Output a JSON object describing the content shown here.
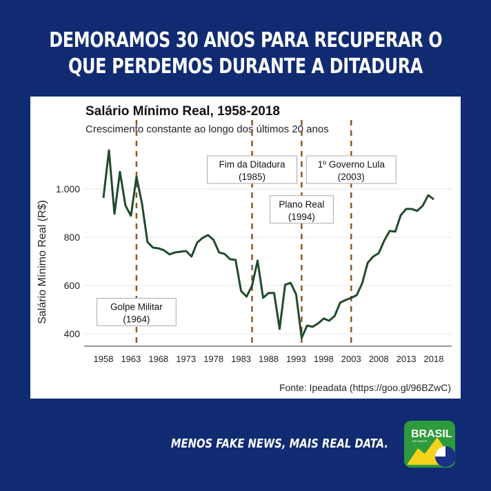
{
  "headline": {
    "line1": "DEMORAMOS 30 ANOS PARA RECUPERAR O",
    "line2": "QUE PERDEMOS DURANTE A DITADURA"
  },
  "footer": {
    "tagline": "MENOS FAKE NEWS, MAIS REAL DATA.",
    "logo_text": "BRASIL",
    "logo_subtext": "EM DADOS"
  },
  "colors": {
    "background": "#112b72",
    "line": "#1f4a2c",
    "event_line": "#8a5a25"
  },
  "chart_data": {
    "type": "line",
    "title": "Salário Mínimo Real, 1958-2018",
    "subtitle": "Crescimento constante ao longo dos últimos 20 anos",
    "ylabel": "Salário Mínimo Real (R$)",
    "xlabel": "",
    "source": "Fonte: Ipeadata (https://goo.gl/96BZwC)",
    "xlim": [
      1956,
      2021
    ],
    "ylim": [
      360,
      1200
    ],
    "xticks": [
      1958,
      1963,
      1968,
      1973,
      1978,
      1983,
      1988,
      1993,
      1998,
      2003,
      2008,
      2013,
      2018
    ],
    "xtick_labels": [
      "1958",
      "1963",
      "1968",
      "1973",
      "1978",
      "1983",
      "1988",
      "1993",
      "1998",
      "2003",
      "2008",
      "2013",
      "2018"
    ],
    "yticks": [
      400,
      600,
      800,
      1000
    ],
    "ytick_labels": [
      "400",
      "600",
      "800",
      "1.000"
    ],
    "grid": true,
    "x": [
      1958,
      1959,
      1960,
      1961,
      1962,
      1963,
      1964,
      1965,
      1966,
      1967,
      1968,
      1969,
      1970,
      1971,
      1972,
      1973,
      1974,
      1975,
      1976,
      1977,
      1978,
      1979,
      1980,
      1981,
      1982,
      1983,
      1984,
      1985,
      1986,
      1987,
      1988,
      1989,
      1990,
      1991,
      1992,
      1993,
      1994,
      1995,
      1996,
      1997,
      1998,
      1999,
      2000,
      2001,
      2002,
      2003,
      2004,
      2005,
      2006,
      2007,
      2008,
      2009,
      2010,
      2011,
      2012,
      2013,
      2014,
      2015,
      2016,
      2017,
      2018
    ],
    "y": [
      963,
      1160,
      897,
      1071,
      931,
      889,
      1051,
      940,
      780,
      757,
      754,
      746,
      729,
      737,
      740,
      743,
      720,
      777,
      797,
      809,
      789,
      737,
      731,
      709,
      706,
      577,
      554,
      600,
      703,
      549,
      569,
      569,
      420,
      603,
      611,
      563,
      383,
      434,
      429,
      443,
      463,
      454,
      474,
      529,
      540,
      549,
      560,
      609,
      694,
      720,
      734,
      786,
      826,
      823,
      891,
      917,
      917,
      909,
      931,
      974,
      957
    ],
    "events": [
      {
        "year": 1964,
        "label": "Golpe Militar",
        "sublabel": "(1964)",
        "label_y": 490
      },
      {
        "year": 1985,
        "label": "Fim da Ditadura",
        "sublabel": "(1985)",
        "label_y": 1080
      },
      {
        "year": 1994,
        "label": "Plano Real",
        "sublabel": "(1994)",
        "label_y": 915
      },
      {
        "year": 2003,
        "label": "1º Governo Lula",
        "sublabel": "(2003)",
        "label_y": 1080
      }
    ]
  }
}
